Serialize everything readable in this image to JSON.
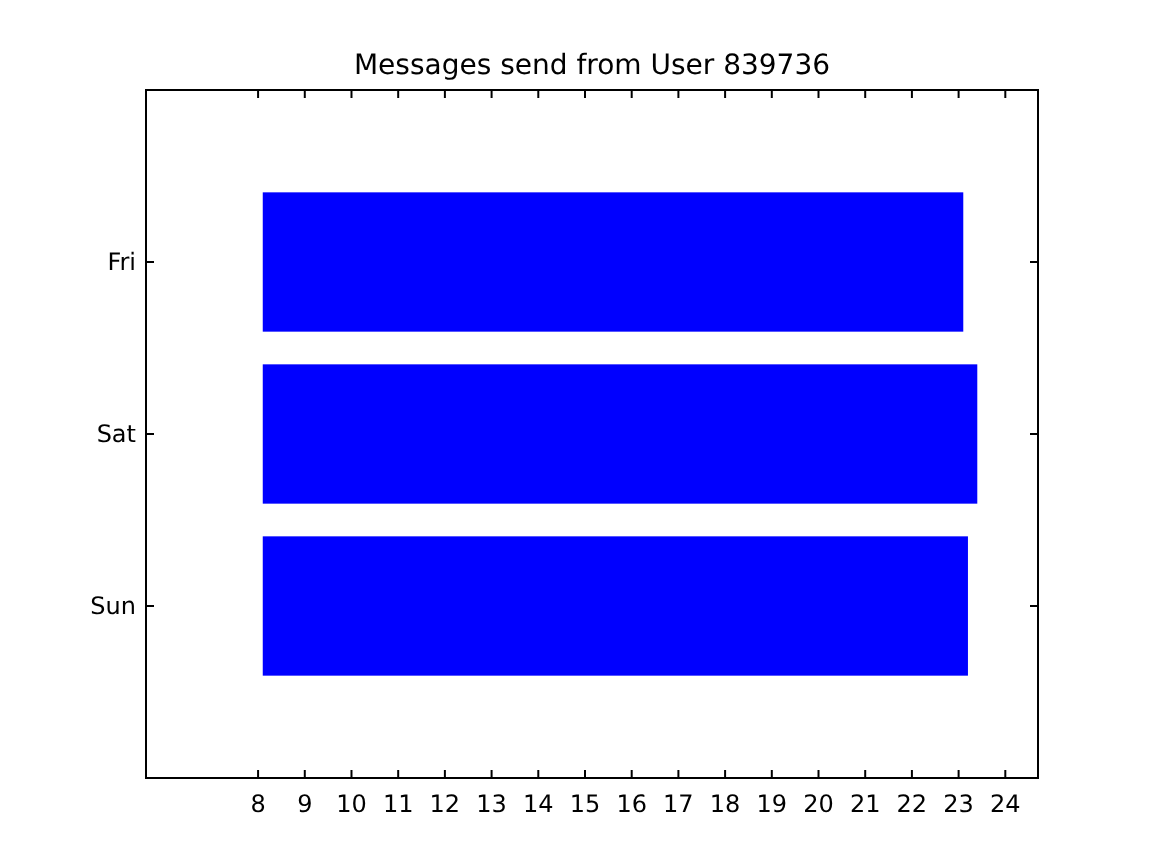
{
  "chart_data": {
    "type": "bar",
    "orientation": "horizontal",
    "title": "Messages send from User 839736",
    "categories": [
      "Fri",
      "Sat",
      "Sun"
    ],
    "base": [
      8.1,
      8.1,
      8.1
    ],
    "values": [
      15.0,
      15.3,
      15.1
    ],
    "color": "#0000ff",
    "xlim": [
      5.6,
      24.7
    ],
    "xticks": [
      8,
      9,
      10,
      11,
      12,
      13,
      14,
      15,
      16,
      17,
      18,
      19,
      20,
      21,
      22,
      23,
      24
    ],
    "grid": false
  }
}
